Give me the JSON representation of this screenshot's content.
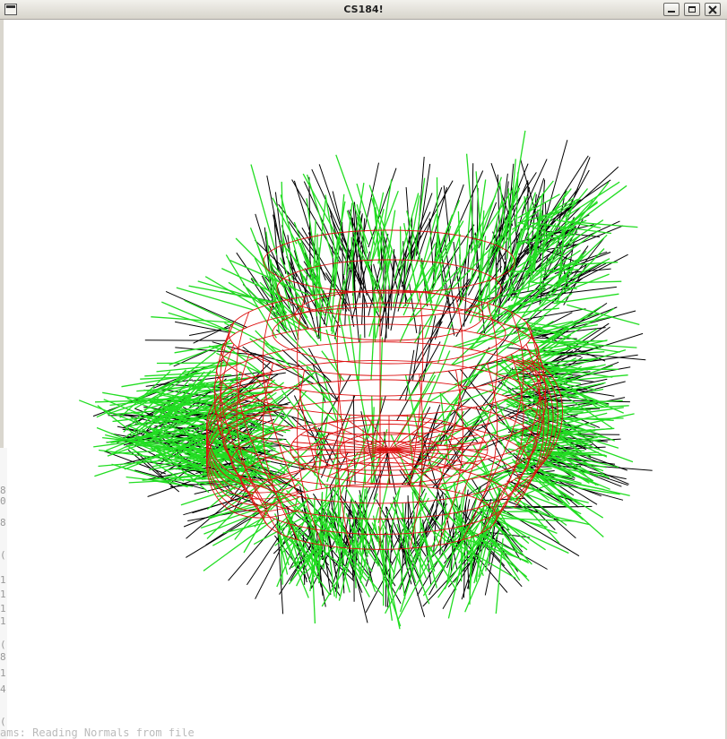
{
  "window": {
    "title": "CS184!",
    "buttons": [
      "minimize",
      "maximize",
      "close"
    ]
  },
  "colors": {
    "mesh": "#dd1111",
    "normals_green": "#22dd22",
    "normals_black": "#000000",
    "background": "#ffffff"
  },
  "background_terminal": {
    "partial_chars": [
      "8",
      "0",
      "8",
      "(",
      "1",
      "1",
      "1",
      "1",
      "(",
      "8",
      "1",
      "4",
      "("
    ],
    "partial_bottom_line": "ams: Reading Normals from file"
  }
}
